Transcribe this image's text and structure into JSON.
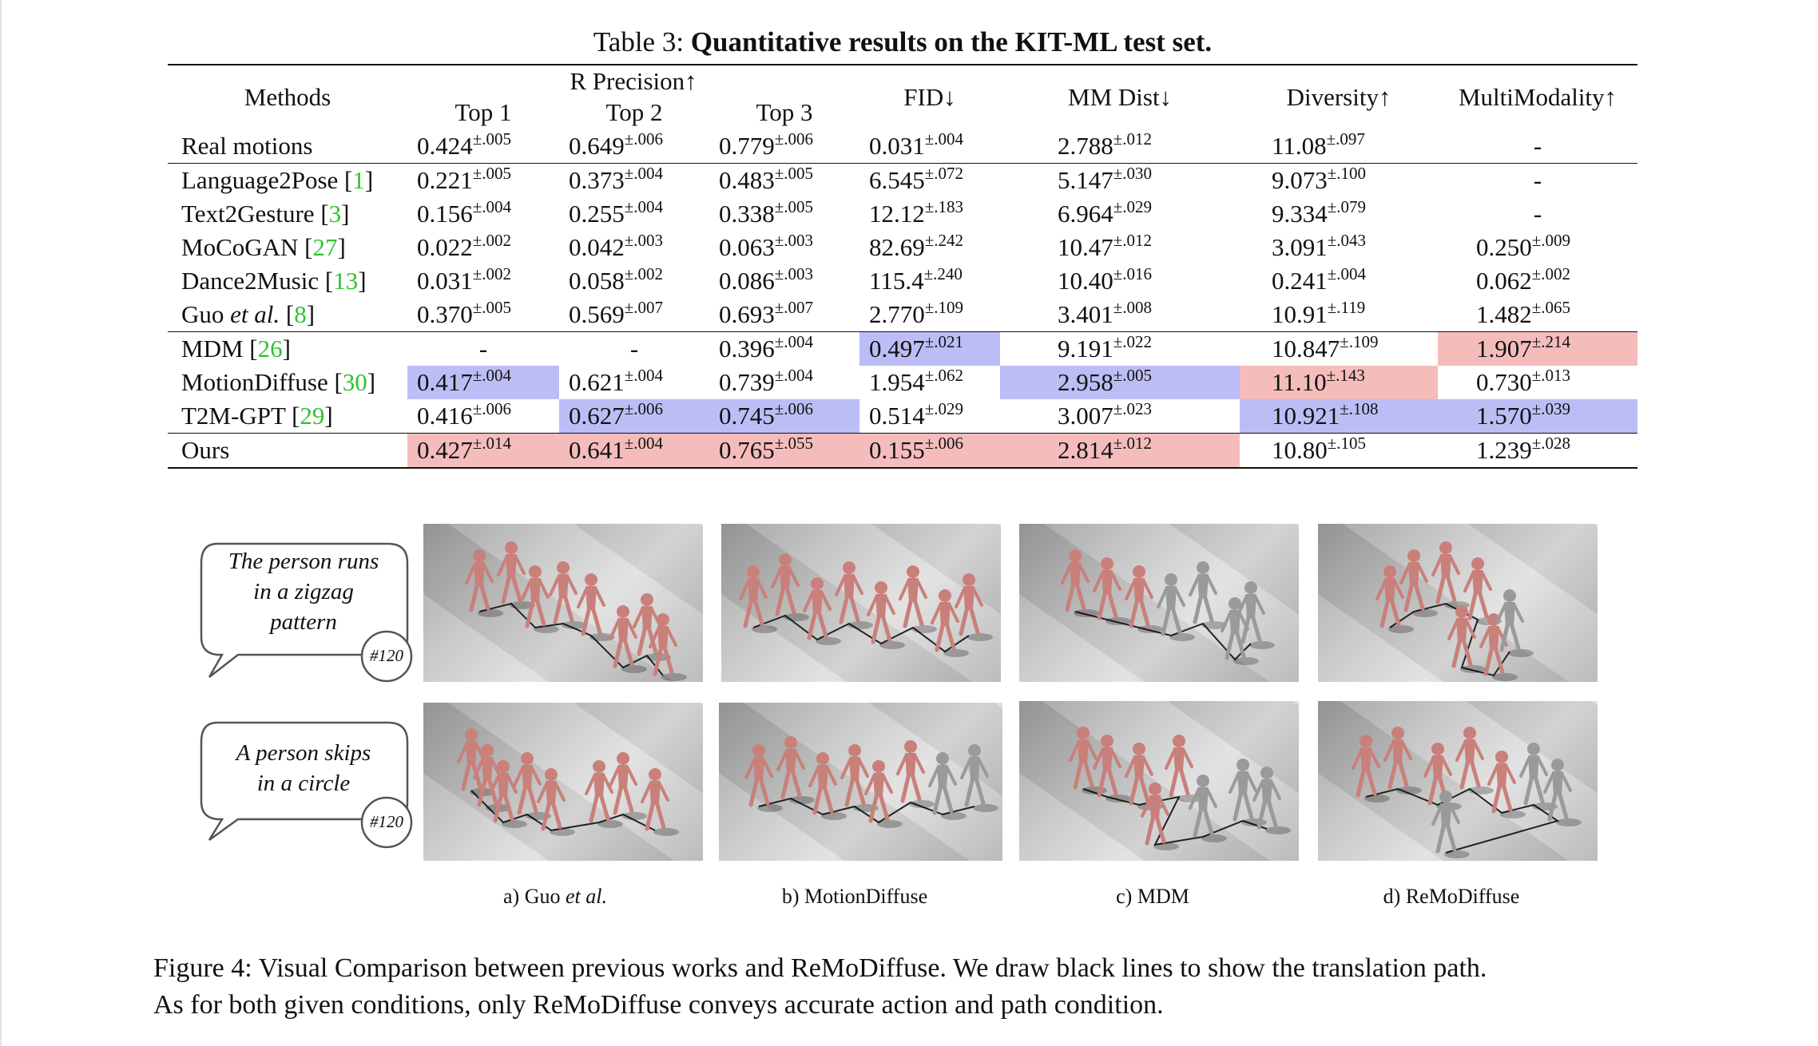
{
  "table": {
    "caption_label": "Table 3:",
    "caption_title": "Quantitative results on the KIT-ML test set.",
    "headers": {
      "methods": "Methods",
      "r_precision": "R Precision↑",
      "top1": "Top 1",
      "top2": "Top 2",
      "top3": "Top 3",
      "fid": "FID↓",
      "mm_dist": "MM Dist↓",
      "diversity": "Diversity↑",
      "multimodality": "MultiModality↑"
    },
    "rows": [
      {
        "method": "Real motions",
        "ref": "",
        "top1": "0.424",
        "top1_ci": "±.005",
        "top2": "0.649",
        "top2_ci": "±.006",
        "top3": "0.779",
        "top3_ci": "±.006",
        "fid": "0.031",
        "fid_ci": "±.004",
        "mm": "2.788",
        "mm_ci": "±.012",
        "div": "11.08",
        "div_ci": "±.097",
        "mmod": "-",
        "mmod_ci": ""
      },
      {
        "method": "Language2Pose",
        "ref": "1",
        "top1": "0.221",
        "top1_ci": "±.005",
        "top2": "0.373",
        "top2_ci": "±.004",
        "top3": "0.483",
        "top3_ci": "±.005",
        "fid": "6.545",
        "fid_ci": "±.072",
        "mm": "5.147",
        "mm_ci": "±.030",
        "div": "9.073",
        "div_ci": "±.100",
        "mmod": "-",
        "mmod_ci": ""
      },
      {
        "method": "Text2Gesture",
        "ref": "3",
        "top1": "0.156",
        "top1_ci": "±.004",
        "top2": "0.255",
        "top2_ci": "±.004",
        "top3": "0.338",
        "top3_ci": "±.005",
        "fid": "12.12",
        "fid_ci": "±.183",
        "mm": "6.964",
        "mm_ci": "±.029",
        "div": "9.334",
        "div_ci": "±.079",
        "mmod": "-",
        "mmod_ci": ""
      },
      {
        "method": "MoCoGAN",
        "ref": "27",
        "top1": "0.022",
        "top1_ci": "±.002",
        "top2": "0.042",
        "top2_ci": "±.003",
        "top3": "0.063",
        "top3_ci": "±.003",
        "fid": "82.69",
        "fid_ci": "±.242",
        "mm": "10.47",
        "mm_ci": "±.012",
        "div": "3.091",
        "div_ci": "±.043",
        "mmod": "0.250",
        "mmod_ci": "±.009"
      },
      {
        "method": "Dance2Music",
        "ref": "13",
        "top1": "0.031",
        "top1_ci": "±.002",
        "top2": "0.058",
        "top2_ci": "±.002",
        "top3": "0.086",
        "top3_ci": "±.003",
        "fid": "115.4",
        "fid_ci": "±.240",
        "mm": "10.40",
        "mm_ci": "±.016",
        "div": "0.241",
        "div_ci": "±.004",
        "mmod": "0.062",
        "mmod_ci": "±.002"
      },
      {
        "method": "Guo",
        "method_italic": "et al.",
        "ref": "8",
        "top1": "0.370",
        "top1_ci": "±.005",
        "top2": "0.569",
        "top2_ci": "±.007",
        "top3": "0.693",
        "top3_ci": "±.007",
        "fid": "2.770",
        "fid_ci": "±.109",
        "mm": "3.401",
        "mm_ci": "±.008",
        "div": "10.91",
        "div_ci": "±.119",
        "mmod": "1.482",
        "mmod_ci": "±.065"
      },
      {
        "method": "MDM",
        "ref": "26",
        "top1": "-",
        "top1_ci": "",
        "top2": "-",
        "top2_ci": "",
        "top3": "0.396",
        "top3_ci": "±.004",
        "fid": "0.497",
        "fid_ci": "±.021",
        "mm": "9.191",
        "mm_ci": "±.022",
        "div": "10.847",
        "div_ci": "±.109",
        "mmod": "1.907",
        "mmod_ci": "±.214"
      },
      {
        "method": "MotionDiffuse",
        "ref": "30",
        "top1": "0.417",
        "top1_ci": "±.004",
        "top2": "0.621",
        "top2_ci": "±.004",
        "top3": "0.739",
        "top3_ci": "±.004",
        "fid": "1.954",
        "fid_ci": "±.062",
        "mm": "2.958",
        "mm_ci": "±.005",
        "div": "11.10",
        "div_ci": "±.143",
        "mmod": "0.730",
        "mmod_ci": "±.013"
      },
      {
        "method": "T2M-GPT",
        "ref": "29",
        "top1": "0.416",
        "top1_ci": "±.006",
        "top2": "0.627",
        "top2_ci": "±.006",
        "top3": "0.745",
        "top3_ci": "±.006",
        "fid": "0.514",
        "fid_ci": "±.029",
        "mm": "3.007",
        "mm_ci": "±.023",
        "div": "10.921",
        "div_ci": "±.108",
        "mmod": "1.570",
        "mmod_ci": "±.039"
      },
      {
        "method": "Ours",
        "ref": "",
        "top1": "0.427",
        "top1_ci": "±.014",
        "top2": "0.641",
        "top2_ci": "±.004",
        "top3": "0.765",
        "top3_ci": "±.055",
        "fid": "0.155",
        "fid_ci": "±.006",
        "mm": "2.814",
        "mm_ci": "±.012",
        "div": "10.80",
        "div_ci": "±.105",
        "mmod": "1.239",
        "mmod_ci": "±.028"
      }
    ],
    "highlight_colors": {
      "best": "#f5bcbc",
      "second": "#bdbdf6"
    }
  },
  "figure": {
    "conditions": [
      {
        "text_lines": [
          "The person runs",
          "in a zigzag",
          "pattern"
        ],
        "id": "#120"
      },
      {
        "text_lines": [
          "A person skips",
          "in a circle"
        ],
        "id": "#120"
      }
    ],
    "subcaptions": [
      {
        "label": "a) Guo",
        "italic": "et al."
      },
      {
        "label": "b) MotionDiffuse",
        "italic": ""
      },
      {
        "label": "c) MDM",
        "italic": ""
      },
      {
        "label": "d) ReMoDiffuse",
        "italic": ""
      }
    ],
    "caption_lines": [
      "Figure 4: Visual Comparison between previous works and ReMoDiffuse. We draw black lines to show the translation path.",
      "As for both given conditions, only ReMoDiffuse conveys accurate action and path condition."
    ],
    "figure_colors": {
      "pink": "#c9807a",
      "gray": "#9a9a9a"
    }
  }
}
